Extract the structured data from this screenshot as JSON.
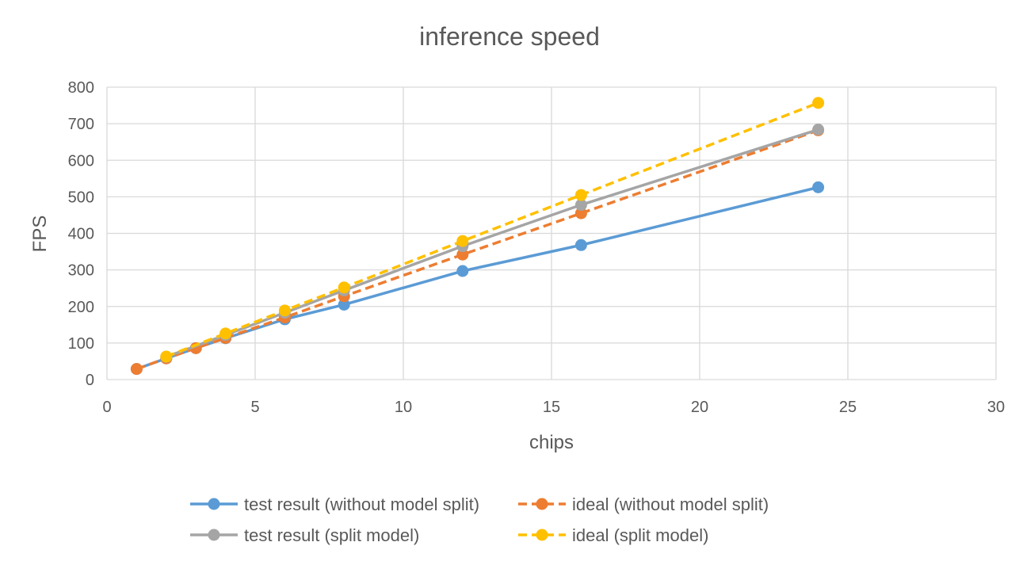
{
  "chart_data": {
    "type": "line",
    "title": "inference speed",
    "xlabel": "chips",
    "ylabel": "FPS",
    "xlim": [
      0,
      30
    ],
    "ylim": [
      0,
      800
    ],
    "xticks": [
      0,
      5,
      10,
      15,
      20,
      25,
      30
    ],
    "yticks": [
      0,
      100,
      200,
      300,
      400,
      500,
      600,
      700,
      800
    ],
    "grid": true,
    "legend_position": "bottom",
    "series": [
      {
        "name": "test result (without model split)",
        "color": "#5B9BD5",
        "dashed": false,
        "points": [
          [
            1,
            29
          ],
          [
            2,
            58
          ],
          [
            3,
            86
          ],
          [
            4,
            113
          ],
          [
            6,
            165
          ],
          [
            8,
            205
          ],
          [
            12,
            297
          ],
          [
            16,
            368
          ],
          [
            24,
            526
          ]
        ]
      },
      {
        "name": "ideal (without model split)",
        "color": "#ED7D31",
        "dashed": true,
        "points": [
          [
            1,
            29
          ],
          [
            2,
            58
          ],
          [
            3,
            86
          ],
          [
            4,
            114
          ],
          [
            6,
            170
          ],
          [
            8,
            228
          ],
          [
            12,
            342
          ],
          [
            16,
            455
          ],
          [
            24,
            682
          ]
        ]
      },
      {
        "name": "test result (split model)",
        "color": "#A5A5A5",
        "dashed": false,
        "points": [
          [
            2,
            62
          ],
          [
            4,
            122
          ],
          [
            6,
            183
          ],
          [
            8,
            244
          ],
          [
            12,
            365
          ],
          [
            16,
            478
          ],
          [
            24,
            684
          ]
        ]
      },
      {
        "name": "ideal (split model)",
        "color": "#FFC000",
        "dashed": true,
        "points": [
          [
            2,
            63
          ],
          [
            4,
            126
          ],
          [
            6,
            189
          ],
          [
            8,
            252
          ],
          [
            12,
            379
          ],
          [
            16,
            505
          ],
          [
            24,
            757
          ]
        ]
      }
    ]
  }
}
